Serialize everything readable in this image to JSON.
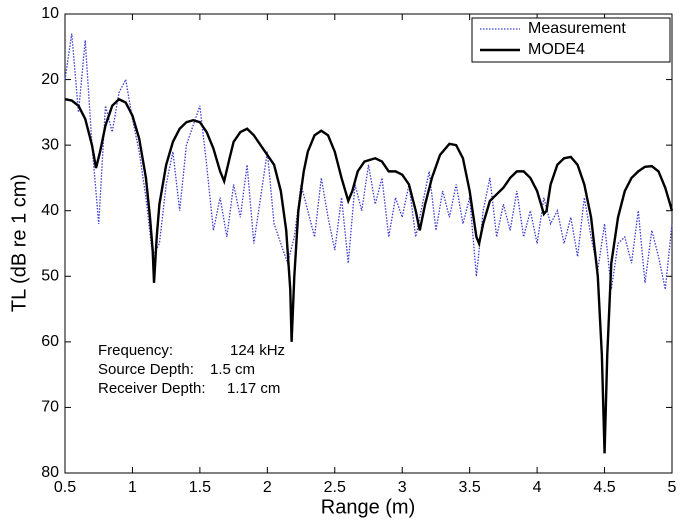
{
  "chart_data": {
    "type": "line",
    "x_label": "Range (m)",
    "y_label": "TL (dB re 1 cm)",
    "xlim": [
      0.5,
      5
    ],
    "xticks": [
      0.5,
      1,
      1.5,
      2,
      2.5,
      3,
      3.5,
      4,
      4.5,
      5
    ],
    "ylim": [
      10,
      80
    ],
    "yticks": [
      10,
      20,
      30,
      40,
      50,
      60,
      70,
      80
    ],
    "invert_y": true,
    "grid": false,
    "legend": "upper right",
    "series": [
      {
        "name": "Measurement",
        "color": "#3a3ad0",
        "style": "dotted",
        "x": [
          0.5,
          0.55,
          0.6,
          0.65,
          0.7,
          0.75,
          0.8,
          0.85,
          0.9,
          0.95,
          1.0,
          1.05,
          1.1,
          1.15,
          1.2,
          1.25,
          1.3,
          1.35,
          1.4,
          1.45,
          1.5,
          1.55,
          1.6,
          1.65,
          1.7,
          1.75,
          1.8,
          1.85,
          1.9,
          1.95,
          2.0,
          2.05,
          2.1,
          2.15,
          2.2,
          2.25,
          2.3,
          2.35,
          2.4,
          2.45,
          2.5,
          2.55,
          2.6,
          2.65,
          2.7,
          2.75,
          2.8,
          2.85,
          2.9,
          2.95,
          3.0,
          3.05,
          3.1,
          3.15,
          3.2,
          3.25,
          3.3,
          3.35,
          3.4,
          3.45,
          3.5,
          3.55,
          3.6,
          3.65,
          3.7,
          3.75,
          3.8,
          3.85,
          3.9,
          3.95,
          4.0,
          4.05,
          4.1,
          4.15,
          4.2,
          4.25,
          4.3,
          4.35,
          4.4,
          4.45,
          4.5,
          4.55,
          4.6,
          4.65,
          4.7,
          4.75,
          4.8,
          4.85,
          4.9,
          4.95,
          5.0
        ],
        "values": [
          20,
          13,
          25,
          14,
          30,
          42,
          24,
          28,
          22,
          20,
          26,
          31,
          38,
          47,
          45,
          36,
          31,
          40,
          30,
          27,
          24,
          33,
          43,
          38,
          44,
          36,
          41,
          33,
          45,
          38,
          31,
          42,
          45,
          48,
          44,
          36,
          40,
          44,
          35,
          41,
          46,
          38,
          48,
          36,
          40,
          33,
          39,
          35,
          44,
          38,
          41,
          36,
          44,
          39,
          34,
          43,
          37,
          41,
          36,
          42,
          38,
          50,
          40,
          35,
          44,
          39,
          43,
          37,
          44,
          40,
          45,
          38,
          42,
          40,
          45,
          41,
          47,
          38,
          44,
          49,
          42,
          52,
          45,
          44,
          48,
          40,
          51,
          43,
          47,
          52,
          42
        ]
      },
      {
        "name": "MODE4",
        "color": "#000000",
        "style": "solid",
        "x": [
          0.5,
          0.55,
          0.6,
          0.65,
          0.7,
          0.73,
          0.76,
          0.8,
          0.85,
          0.9,
          0.95,
          1.0,
          1.05,
          1.1,
          1.13,
          1.15,
          1.16,
          1.18,
          1.2,
          1.25,
          1.3,
          1.35,
          1.4,
          1.45,
          1.5,
          1.55,
          1.6,
          1.65,
          1.68,
          1.72,
          1.75,
          1.8,
          1.85,
          1.9,
          1.95,
          2.0,
          2.05,
          2.1,
          2.14,
          2.17,
          2.18,
          2.2,
          2.23,
          2.27,
          2.3,
          2.35,
          2.4,
          2.45,
          2.5,
          2.55,
          2.6,
          2.63,
          2.67,
          2.72,
          2.8,
          2.85,
          2.9,
          2.95,
          3.0,
          3.05,
          3.1,
          3.13,
          3.17,
          3.22,
          3.28,
          3.35,
          3.4,
          3.45,
          3.5,
          3.55,
          3.57,
          3.6,
          3.65,
          3.7,
          3.75,
          3.8,
          3.85,
          3.9,
          3.95,
          4.0,
          4.05,
          4.07,
          4.1,
          4.15,
          4.2,
          4.25,
          4.3,
          4.35,
          4.4,
          4.45,
          4.48,
          4.5,
          4.52,
          4.55,
          4.6,
          4.65,
          4.7,
          4.75,
          4.8,
          4.85,
          4.9,
          4.95,
          5.0
        ],
        "values": [
          23,
          23.2,
          24,
          26,
          30,
          33.5,
          31,
          27,
          24,
          23,
          23.5,
          25.5,
          29,
          35,
          41,
          46,
          51,
          44,
          39,
          33,
          29.5,
          27.5,
          26.5,
          26.2,
          26.5,
          28,
          30.5,
          34,
          35.5,
          32,
          29.5,
          28,
          27.5,
          28.5,
          30,
          31.5,
          33,
          37,
          43,
          52,
          60,
          50,
          40,
          34,
          31,
          28.5,
          27.8,
          28.5,
          31,
          35,
          38.5,
          37,
          34,
          32.5,
          32,
          32.5,
          34,
          34,
          34.5,
          36,
          40,
          43,
          39,
          35,
          31.5,
          29.8,
          30,
          32,
          37,
          44,
          45,
          42,
          38.5,
          37.5,
          36.5,
          35,
          34,
          34,
          35,
          37,
          40.5,
          40,
          36,
          33,
          32,
          31.8,
          33,
          36,
          41,
          50,
          62,
          77,
          62,
          48,
          41,
          37,
          35,
          34,
          33.3,
          33.2,
          34,
          36.5,
          40
        ]
      }
    ],
    "annotations": [
      {
        "label": "Frequency:",
        "value": "124 kHz"
      },
      {
        "label": "Source Depth:",
        "value": "1.5 cm"
      },
      {
        "label": "Receiver Depth:",
        "value": "1.17 cm"
      }
    ]
  }
}
